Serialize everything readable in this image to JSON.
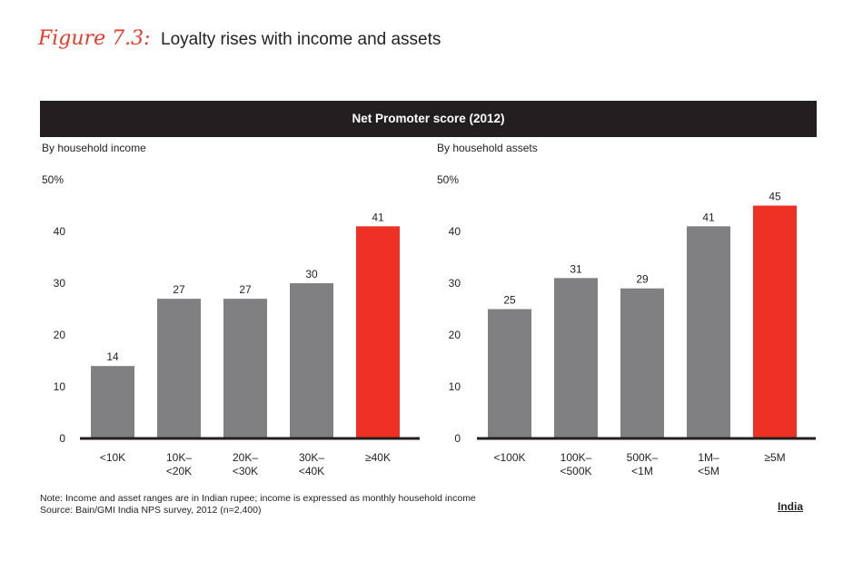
{
  "figure": {
    "label": "Figure 7.3:",
    "title": "Loyalty rises with income and assets"
  },
  "banner": {
    "title": "Net Promoter score (2012)"
  },
  "colors": {
    "bar": "#808083",
    "highlight": "#ee3124",
    "axis": "#231f20",
    "banner_bg": "#231f20"
  },
  "chart_data": [
    {
      "type": "bar",
      "title": "By household income",
      "categories": [
        "<10K",
        "10K–\n<20K",
        "20K–\n<30K",
        "30K–\n<40K",
        "≥40K"
      ],
      "values": [
        14,
        27,
        27,
        30,
        41
      ],
      "highlight_index": 4,
      "ylim": [
        0,
        50
      ],
      "yticks": [
        "0",
        "10",
        "20",
        "30",
        "40",
        "50%"
      ],
      "xlabel": "",
      "ylabel": ""
    },
    {
      "type": "bar",
      "title": "By household assets",
      "categories": [
        "<100K",
        "100K–\n<500K",
        "500K–\n<1M",
        "1M–\n<5M",
        "≥5M"
      ],
      "values": [
        25,
        31,
        29,
        41,
        45
      ],
      "highlight_index": 4,
      "ylim": [
        0,
        50
      ],
      "yticks": [
        "0",
        "10",
        "20",
        "30",
        "40",
        "50%"
      ],
      "xlabel": "",
      "ylabel": ""
    }
  ],
  "notes": {
    "line1": "Note: Income and asset ranges are in Indian rupee; income is expressed as monthly household income",
    "line2": "Source: Bain/GMI India NPS survey, 2012 (n=2,400)"
  },
  "region": "India"
}
